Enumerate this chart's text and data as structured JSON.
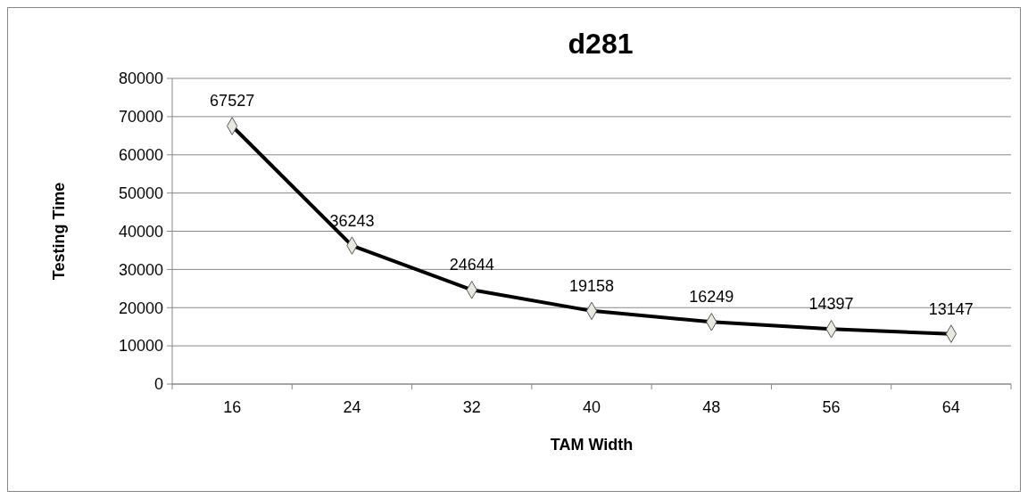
{
  "chart_data": {
    "type": "line",
    "title": "d281",
    "xlabel": "TAM Width",
    "ylabel": "Testing Time",
    "categories": [
      "16",
      "24",
      "32",
      "40",
      "48",
      "56",
      "64"
    ],
    "series": [
      {
        "color": "#000000",
        "values": [
          67527,
          36243,
          24644,
          19158,
          16249,
          14397,
          13147
        ]
      }
    ],
    "ylim": [
      0,
      80000
    ],
    "yticks": [
      0,
      10000,
      20000,
      30000,
      40000,
      50000,
      60000,
      70000,
      80000
    ],
    "grid": "y",
    "marker": "diamond",
    "line_style": "solid",
    "data_labels": true
  }
}
